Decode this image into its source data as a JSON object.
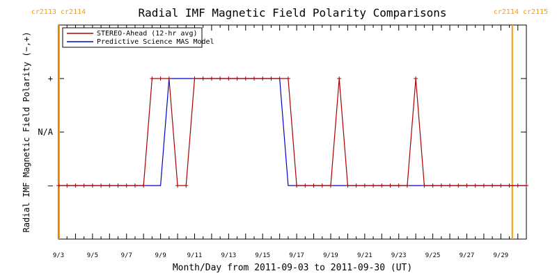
{
  "chart_data": {
    "type": "line",
    "title": "Radial IMF Magnetic Field Polarity Comparisons",
    "xlabel": "Month/Day from 2011-09-03 to 2011-09-30 (UT)",
    "ylabel": "Radial IMF Magnetic Field Polarity (−,+)",
    "xlim": [
      "2011-09-03",
      "2011-09-30"
    ],
    "ylim": [
      -2,
      2
    ],
    "x_ticks": [
      "9/3",
      "9/5",
      "9/7",
      "9/9",
      "9/11",
      "9/13",
      "9/15",
      "9/17",
      "9/19",
      "9/21",
      "9/23",
      "9/25",
      "9/27",
      "9/29"
    ],
    "y_ticks": [
      {
        "value": 1,
        "label": "+"
      },
      {
        "value": 0,
        "label": "N/A"
      },
      {
        "value": -1,
        "label": "–"
      }
    ],
    "carrington": {
      "left": "cr2113 cr2114",
      "right": "cr2114 cr2115",
      "left_date": "2011-09-03",
      "right_date": "2011-09-30",
      "color": "#ff9900"
    },
    "legend": {
      "placement": "top-left"
    },
    "series": [
      {
        "name": "STEREO-Ahead (12-hr avg)",
        "color": "#aa0000",
        "markers": true,
        "points": [
          [
            "2011-09-03 00:00",
            -1
          ],
          [
            "2011-09-03 12:00",
            -1
          ],
          [
            "2011-09-04 00:00",
            -1
          ],
          [
            "2011-09-04 12:00",
            -1
          ],
          [
            "2011-09-05 00:00",
            -1
          ],
          [
            "2011-09-05 12:00",
            -1
          ],
          [
            "2011-09-06 00:00",
            -1
          ],
          [
            "2011-09-06 12:00",
            -1
          ],
          [
            "2011-09-07 00:00",
            -1
          ],
          [
            "2011-09-07 12:00",
            -1
          ],
          [
            "2011-09-08 00:00",
            -1
          ],
          [
            "2011-09-08 12:00",
            1
          ],
          [
            "2011-09-09 00:00",
            1
          ],
          [
            "2011-09-09 12:00",
            1
          ],
          [
            "2011-09-10 00:00",
            -1
          ],
          [
            "2011-09-10 12:00",
            -1
          ],
          [
            "2011-09-11 00:00",
            1
          ],
          [
            "2011-09-11 12:00",
            1
          ],
          [
            "2011-09-12 00:00",
            1
          ],
          [
            "2011-09-12 12:00",
            1
          ],
          [
            "2011-09-13 00:00",
            1
          ],
          [
            "2011-09-13 12:00",
            1
          ],
          [
            "2011-09-14 00:00",
            1
          ],
          [
            "2011-09-14 12:00",
            1
          ],
          [
            "2011-09-15 00:00",
            1
          ],
          [
            "2011-09-15 12:00",
            1
          ],
          [
            "2011-09-16 00:00",
            1
          ],
          [
            "2011-09-16 12:00",
            1
          ],
          [
            "2011-09-17 00:00",
            -1
          ],
          [
            "2011-09-17 12:00",
            -1
          ],
          [
            "2011-09-18 00:00",
            -1
          ],
          [
            "2011-09-18 12:00",
            -1
          ],
          [
            "2011-09-19 00:00",
            -1
          ],
          [
            "2011-09-19 12:00",
            1
          ],
          [
            "2011-09-20 00:00",
            -1
          ],
          [
            "2011-09-20 12:00",
            -1
          ],
          [
            "2011-09-21 00:00",
            -1
          ],
          [
            "2011-09-21 12:00",
            -1
          ],
          [
            "2011-09-22 00:00",
            -1
          ],
          [
            "2011-09-22 12:00",
            -1
          ],
          [
            "2011-09-23 00:00",
            -1
          ],
          [
            "2011-09-23 12:00",
            -1
          ],
          [
            "2011-09-24 00:00",
            1
          ],
          [
            "2011-09-24 12:00",
            -1
          ],
          [
            "2011-09-25 00:00",
            -1
          ],
          [
            "2011-09-25 12:00",
            -1
          ],
          [
            "2011-09-26 00:00",
            -1
          ],
          [
            "2011-09-26 12:00",
            -1
          ],
          [
            "2011-09-27 00:00",
            -1
          ],
          [
            "2011-09-27 12:00",
            -1
          ],
          [
            "2011-09-28 00:00",
            -1
          ],
          [
            "2011-09-28 12:00",
            -1
          ],
          [
            "2011-09-29 00:00",
            -1
          ],
          [
            "2011-09-29 12:00",
            -1
          ],
          [
            "2011-09-30 00:00",
            -1
          ],
          [
            "2011-09-30 12:00",
            -1
          ]
        ]
      },
      {
        "name": "Predictive Science MAS Model",
        "color": "#0000cc",
        "markers": false,
        "points": [
          [
            "2011-09-03 00:00",
            -1
          ],
          [
            "2011-09-09 00:00",
            -1
          ],
          [
            "2011-09-09 12:00",
            1
          ],
          [
            "2011-09-16 00:00",
            1
          ],
          [
            "2011-09-16 12:00",
            -1
          ],
          [
            "2011-09-30 12:00",
            -1
          ]
        ]
      }
    ]
  }
}
